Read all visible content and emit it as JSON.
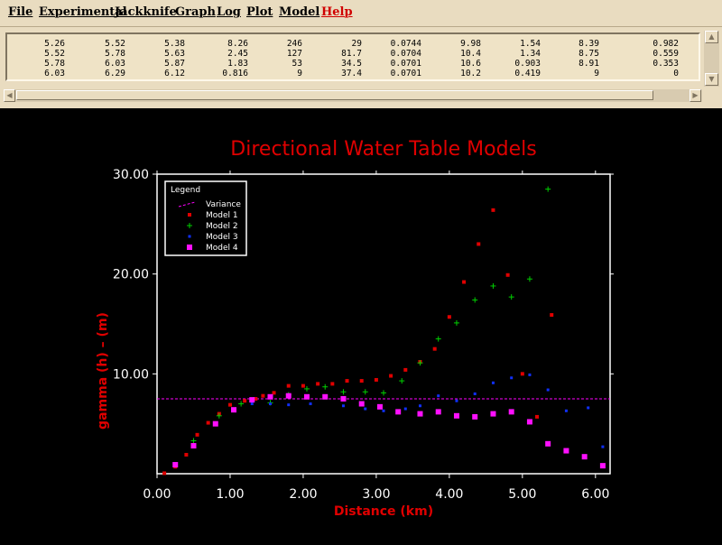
{
  "menu": [
    "File",
    "Experimental",
    "Jackknife",
    "Graph",
    "Log",
    "Plot",
    "Model",
    "Help"
  ],
  "table_rows": [
    [
      "5.26",
      "5.52",
      "5.38",
      "8.26",
      "246",
      "29",
      "0.0744",
      "9.98",
      "1.54",
      "8.39",
      "0.982"
    ],
    [
      "5.52",
      "5.78",
      "5.63",
      "2.45",
      "127",
      "81.7",
      "0.0704",
      "10.4",
      "1.34",
      "8.75",
      "0.559"
    ],
    [
      "5.78",
      "6.03",
      "5.87",
      "1.83",
      "53",
      "34.5",
      "0.0701",
      "10.6",
      "0.903",
      "8.91",
      "0.353"
    ],
    [
      "6.03",
      "6.29",
      "6.12",
      "0.816",
      "9",
      "37.4",
      "0.0701",
      "10.2",
      "0.419",
      "9",
      "0"
    ]
  ],
  "scroll_icons": [
    "arrow-up",
    "arrow-down",
    "arrow-left",
    "arrow-right"
  ],
  "colors": {
    "title": "#e00000",
    "model1": "#e00000",
    "model2": "#00d000",
    "model3": "#1030ff",
    "model4": "#ff10ff",
    "variance": "#ff00ff"
  },
  "chart_data": {
    "type": "scatter",
    "title": "Directional Water Table Models",
    "xlabel": "Distance (km)",
    "ylabel": "gamma (h) – (m)",
    "xlim": [
      0,
      6.2
    ],
    "ylim": [
      0,
      30
    ],
    "xticks": [
      "0.00",
      "1.00",
      "2.00",
      "3.00",
      "4.00",
      "5.00",
      "6.00"
    ],
    "xtick_values": [
      0,
      1,
      2,
      3,
      4,
      5,
      6
    ],
    "yticks": [
      "10.00",
      "20.00",
      "30.00"
    ],
    "ytick_values": [
      10,
      20,
      30
    ],
    "legend_title": "Legend",
    "legend_placement": "top-left",
    "variance": {
      "name": "Variance",
      "value": 7.5
    },
    "series": [
      {
        "name": "Model 1",
        "marker": "square-small",
        "points": [
          [
            0.1,
            0.05
          ],
          [
            0.25,
            0.7
          ],
          [
            0.4,
            1.9
          ],
          [
            0.55,
            3.9
          ],
          [
            0.7,
            5.1
          ],
          [
            0.85,
            6.0
          ],
          [
            1.0,
            6.9
          ],
          [
            1.2,
            7.3
          ],
          [
            1.35,
            7.5
          ],
          [
            1.45,
            7.8
          ],
          [
            1.6,
            8.1
          ],
          [
            1.8,
            8.8
          ],
          [
            2.0,
            8.8
          ],
          [
            2.2,
            9.0
          ],
          [
            2.4,
            9.0
          ],
          [
            2.6,
            9.3
          ],
          [
            2.8,
            9.3
          ],
          [
            3.0,
            9.4
          ],
          [
            3.2,
            9.8
          ],
          [
            3.4,
            10.4
          ],
          [
            3.6,
            11.2
          ],
          [
            3.8,
            12.5
          ],
          [
            4.0,
            15.7
          ],
          [
            4.2,
            19.2
          ],
          [
            4.4,
            23.0
          ],
          [
            4.6,
            26.4
          ],
          [
            4.8,
            19.9
          ],
          [
            5.0,
            10.0
          ],
          [
            5.2,
            5.7
          ],
          [
            5.4,
            15.9
          ]
        ]
      },
      {
        "name": "Model 2",
        "marker": "plus",
        "points": [
          [
            0.5,
            3.3
          ],
          [
            0.85,
            5.8
          ],
          [
            1.15,
            7.0
          ],
          [
            1.3,
            7.2
          ],
          [
            1.55,
            7.1
          ],
          [
            1.8,
            7.9
          ],
          [
            2.05,
            8.5
          ],
          [
            2.3,
            8.7
          ],
          [
            2.55,
            8.2
          ],
          [
            2.85,
            8.2
          ],
          [
            3.1,
            8.1
          ],
          [
            3.35,
            9.3
          ],
          [
            3.6,
            11.1
          ],
          [
            3.85,
            13.5
          ],
          [
            4.1,
            15.1
          ],
          [
            4.35,
            17.4
          ],
          [
            4.6,
            18.8
          ],
          [
            4.85,
            17.7
          ],
          [
            5.1,
            19.5
          ],
          [
            5.35,
            28.5
          ]
        ]
      },
      {
        "name": "Model 3",
        "marker": "dot",
        "points": [
          [
            1.3,
            7.0
          ],
          [
            1.55,
            7.0
          ],
          [
            1.8,
            6.9
          ],
          [
            2.1,
            7.0
          ],
          [
            2.55,
            6.8
          ],
          [
            2.85,
            6.5
          ],
          [
            3.1,
            6.3
          ],
          [
            3.4,
            6.5
          ],
          [
            3.6,
            6.8
          ],
          [
            3.85,
            7.8
          ],
          [
            4.1,
            7.3
          ],
          [
            4.35,
            8.0
          ],
          [
            4.6,
            9.1
          ],
          [
            4.85,
            9.6
          ],
          [
            5.1,
            9.9
          ],
          [
            5.35,
            8.4
          ],
          [
            5.6,
            6.3
          ],
          [
            5.9,
            6.6
          ],
          [
            6.1,
            2.7
          ]
        ]
      },
      {
        "name": "Model 4",
        "marker": "square",
        "points": [
          [
            0.25,
            0.9
          ],
          [
            0.5,
            2.8
          ],
          [
            0.8,
            5.0
          ],
          [
            1.05,
            6.4
          ],
          [
            1.3,
            7.4
          ],
          [
            1.55,
            7.7
          ],
          [
            1.8,
            7.8
          ],
          [
            2.05,
            7.7
          ],
          [
            2.3,
            7.7
          ],
          [
            2.55,
            7.5
          ],
          [
            2.8,
            7.0
          ],
          [
            3.05,
            6.7
          ],
          [
            3.3,
            6.2
          ],
          [
            3.6,
            6.0
          ],
          [
            3.85,
            6.2
          ],
          [
            4.1,
            5.8
          ],
          [
            4.35,
            5.7
          ],
          [
            4.6,
            6.0
          ],
          [
            4.85,
            6.2
          ],
          [
            5.1,
            5.2
          ],
          [
            5.35,
            3.0
          ],
          [
            5.6,
            2.3
          ],
          [
            5.85,
            1.7
          ],
          [
            6.1,
            0.8
          ]
        ]
      }
    ]
  }
}
